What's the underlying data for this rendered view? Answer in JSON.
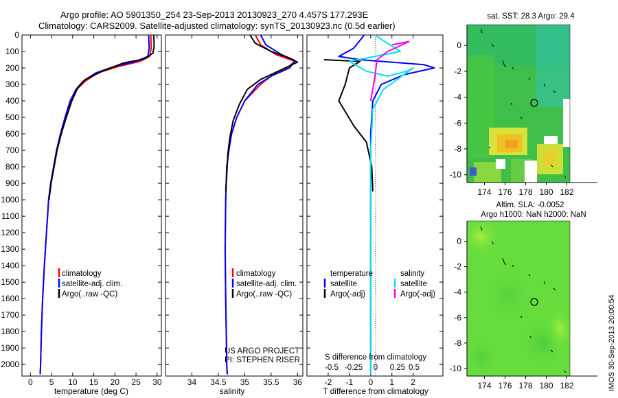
{
  "title_line1": "Argo profile: AO 5901350_254 23-Sep-2013 20130923_270 4.457S 177.293E",
  "title_line2": "Climatology: CARS2009. Satellite-adjusted climatology: synTS_20130923.nc (0.5d earlier)",
  "credit_line1": "US ARGO PROJECT",
  "credit_line2": "PI: STEPHEN RISER",
  "timestamp": "IMOS 30-Sep-2013 20:00:54",
  "colors": {
    "climatology": "#ff0000",
    "satellite": "#0000ff",
    "argo": "#000000",
    "satellite_salinity": "#00e0f0",
    "argo_salinity": "#ee00ee"
  },
  "chart_data": [
    {
      "type": "line",
      "panel": "temperature",
      "xlabel": "temperature (deg C)",
      "xlim": [
        -2,
        31
      ],
      "xticks": [
        "0",
        "5",
        "10",
        "15",
        "20",
        "25",
        "30"
      ],
      "ylim": [
        2070,
        0
      ],
      "yticks": [
        "0",
        "100",
        "200",
        "300",
        "400",
        "500",
        "600",
        "700",
        "800",
        "900",
        "1000",
        "1100",
        "1200",
        "1300",
        "1400",
        "1500",
        "1600",
        "1700",
        "1800",
        "1900",
        "2000"
      ],
      "legend": [
        "climatology",
        "satellite-adj. clim.",
        "Argo(..raw -QC)"
      ],
      "legend_position": "lower-left",
      "series": [
        {
          "name": "climatology",
          "color": "#ff0000",
          "points": [
            [
              28.5,
              0
            ],
            [
              28.6,
              80
            ],
            [
              28.2,
              130
            ],
            [
              26,
              160
            ],
            [
              21,
              190
            ],
            [
              16,
              230
            ],
            [
              13,
              280
            ],
            [
              11,
              330
            ],
            [
              9.5,
              400
            ],
            [
              8.3,
              500
            ],
            [
              7.2,
              600
            ],
            [
              6.2,
              700
            ],
            [
              5.5,
              800
            ],
            [
              4.8,
              900
            ],
            [
              4.3,
              1000
            ],
            [
              3.8,
              1200
            ],
            [
              3.3,
              1400
            ],
            [
              2.9,
              1600
            ],
            [
              2.6,
              1800
            ],
            [
              2.4,
              2000
            ],
            [
              2.3,
              2060
            ]
          ]
        },
        {
          "name": "satellite-adj. clim.",
          "color": "#0000ff",
          "points": [
            [
              28.0,
              0
            ],
            [
              28.1,
              80
            ],
            [
              27.8,
              130
            ],
            [
              25,
              160
            ],
            [
              20,
              190
            ],
            [
              15.5,
              230
            ],
            [
              12.5,
              280
            ],
            [
              10.8,
              330
            ],
            [
              9.4,
              400
            ],
            [
              8.2,
              500
            ],
            [
              7.1,
              600
            ],
            [
              6.2,
              700
            ],
            [
              5.5,
              800
            ],
            [
              4.8,
              900
            ],
            [
              4.3,
              1000
            ],
            [
              3.8,
              1200
            ],
            [
              3.3,
              1400
            ],
            [
              2.9,
              1600
            ],
            [
              2.6,
              1800
            ],
            [
              2.4,
              2000
            ],
            [
              2.3,
              2060
            ]
          ]
        },
        {
          "name": "Argo(..raw -QC)",
          "color": "#000000",
          "points": [
            [
              29.2,
              0
            ],
            [
              29.3,
              70
            ],
            [
              29.0,
              110
            ],
            [
              27,
              145
            ],
            [
              22,
              170
            ],
            [
              17,
              220
            ],
            [
              13,
              270
            ],
            [
              11.2,
              320
            ],
            [
              9.8,
              400
            ],
            [
              8.5,
              500
            ],
            [
              7.3,
              600
            ],
            [
              6.3,
              700
            ],
            [
              5.6,
              800
            ],
            [
              4.9,
              900
            ],
            [
              4.4,
              1000
            ]
          ]
        }
      ]
    },
    {
      "type": "line",
      "panel": "salinity",
      "xlabel": "salinity",
      "xlim": [
        33.5,
        36.1
      ],
      "xticks": [
        "34",
        "34.5",
        "35",
        "35.5",
        "36"
      ],
      "ylim": [
        2070,
        0
      ],
      "legend": [
        "climatology",
        "satellite-adj. clim.",
        "Argo(..raw -QC)"
      ],
      "legend_position": "lower-left",
      "series": [
        {
          "name": "climatology",
          "color": "#ff0000",
          "points": [
            [
              35.2,
              0
            ],
            [
              35.3,
              60
            ],
            [
              35.6,
              120
            ],
            [
              35.95,
              160
            ],
            [
              35.8,
              200
            ],
            [
              35.5,
              250
            ],
            [
              35.3,
              300
            ],
            [
              35.0,
              400
            ],
            [
              34.85,
              500
            ],
            [
              34.75,
              600
            ],
            [
              34.7,
              700
            ],
            [
              34.66,
              800
            ],
            [
              34.64,
              1000
            ],
            [
              34.63,
              1300
            ],
            [
              34.64,
              1600
            ],
            [
              34.65,
              1800
            ],
            [
              34.66,
              2000
            ],
            [
              34.67,
              2060
            ]
          ]
        },
        {
          "name": "satellite-adj. clim.",
          "color": "#0000ff",
          "points": [
            [
              35.3,
              0
            ],
            [
              35.4,
              60
            ],
            [
              35.7,
              120
            ],
            [
              35.95,
              155
            ],
            [
              35.85,
              200
            ],
            [
              35.5,
              250
            ],
            [
              35.25,
              300
            ],
            [
              35.0,
              400
            ],
            [
              34.85,
              500
            ],
            [
              34.75,
              600
            ],
            [
              34.7,
              700
            ],
            [
              34.66,
              800
            ],
            [
              34.64,
              1000
            ],
            [
              34.63,
              1300
            ],
            [
              34.64,
              1600
            ],
            [
              34.65,
              1800
            ],
            [
              34.66,
              2000
            ],
            [
              34.67,
              2060
            ]
          ]
        },
        {
          "name": "Argo(..raw -QC)",
          "color": "#000000",
          "points": [
            [
              35.1,
              0
            ],
            [
              35.2,
              50
            ],
            [
              35.5,
              100
            ],
            [
              35.85,
              140
            ],
            [
              36.0,
              165
            ],
            [
              35.7,
              210
            ],
            [
              35.3,
              270
            ],
            [
              35.05,
              330
            ],
            [
              34.9,
              420
            ],
            [
              34.78,
              520
            ],
            [
              34.72,
              620
            ],
            [
              34.68,
              720
            ],
            [
              34.66,
              850
            ],
            [
              34.64,
              950
            ]
          ]
        }
      ]
    },
    {
      "type": "line",
      "panel": "difference",
      "xlabel": "T difference from climatology",
      "xlabel_top": "S difference from climatology",
      "xlim": [
        -3,
        3.4
      ],
      "xticks": [
        "-2",
        "-1",
        "0",
        "1",
        "2"
      ],
      "xticks_salinity": [
        "-0.5",
        "-0.25",
        "0",
        "0.25",
        "0.5"
      ],
      "ylim": [
        2070,
        0
      ],
      "legend_headers": [
        "temperature",
        "salinity"
      ],
      "legend": [
        "satellite",
        "Argo(-adj)",
        "satellite",
        "Argo(-adj)"
      ],
      "legend_position": "lower",
      "series": [
        {
          "name": "satellite",
          "color": "#0000ff",
          "points": [
            [
              -0.3,
              0
            ],
            [
              -0.8,
              80
            ],
            [
              -1.5,
              130
            ],
            [
              -0.5,
              150
            ],
            [
              2.5,
              180
            ],
            [
              3.0,
              200
            ],
            [
              1.6,
              240
            ],
            [
              0.5,
              300
            ],
            [
              0.1,
              400
            ],
            [
              0.0,
              600
            ],
            [
              0.0,
              2060
            ]
          ]
        },
        {
          "name": "Argo(-adj)",
          "color": "#000000",
          "points": [
            [
              -2.2,
              150
            ],
            [
              -0.5,
              160
            ],
            [
              -1.0,
              200
            ],
            [
              -1.2,
              300
            ],
            [
              -1.5,
              400
            ],
            [
              -0.8,
              550
            ],
            [
              -0.2,
              650
            ],
            [
              0.05,
              800
            ],
            [
              0.1,
              950
            ]
          ]
        },
        {
          "name": "satellite",
          "color": "#00e0f0",
          "points": [
            [
              0.2,
              0
            ],
            [
              0.9,
              60
            ],
            [
              1.4,
              100
            ],
            [
              -1.0,
              160
            ],
            [
              -0.2,
              220
            ],
            [
              0.8,
              250
            ],
            [
              1.7,
              220
            ],
            [
              2.0,
              200
            ],
            [
              0.6,
              330
            ],
            [
              0.1,
              450
            ],
            [
              0.0,
              700
            ],
            [
              0.0,
              2060
            ]
          ]
        },
        {
          "name": "Argo(-adj)",
          "color": "#ee00ee",
          "points": [
            [
              1.0,
              60
            ],
            [
              1.8,
              40
            ],
            [
              0.8,
              100
            ],
            [
              0.3,
              150
            ],
            [
              0.2,
              250
            ],
            [
              0.1,
              330
            ],
            [
              0.0,
              400
            ]
          ]
        }
      ]
    },
    {
      "type": "heatmap",
      "panel": "sat-sst",
      "title": "sat. SST: 28.3  Argo: 29.4",
      "xlim": [
        172.3,
        182.3
      ],
      "ylim": [
        -10.6,
        1.6
      ],
      "xticks": [
        "174",
        "176",
        "178",
        "180",
        "182"
      ],
      "yticks": [
        "0",
        "-2",
        "-4",
        "-6",
        "-8",
        "-10"
      ],
      "marker": {
        "lon": 177.293,
        "lat": -4.457
      }
    },
    {
      "type": "heatmap",
      "panel": "altim-sla",
      "title_line1": "Altim. SLA: -0.0052",
      "title_line2": "Argo h1000: NaN h2000: NaN",
      "xlim": [
        172.3,
        182.3
      ],
      "ylim": [
        -10.6,
        1.6
      ],
      "xticks": [
        "174",
        "176",
        "178",
        "180",
        "182"
      ],
      "yticks": [
        "0",
        "-2",
        "-4",
        "-6",
        "-8",
        "-10"
      ],
      "marker": {
        "lon": 177.293,
        "lat": -4.457
      }
    }
  ]
}
